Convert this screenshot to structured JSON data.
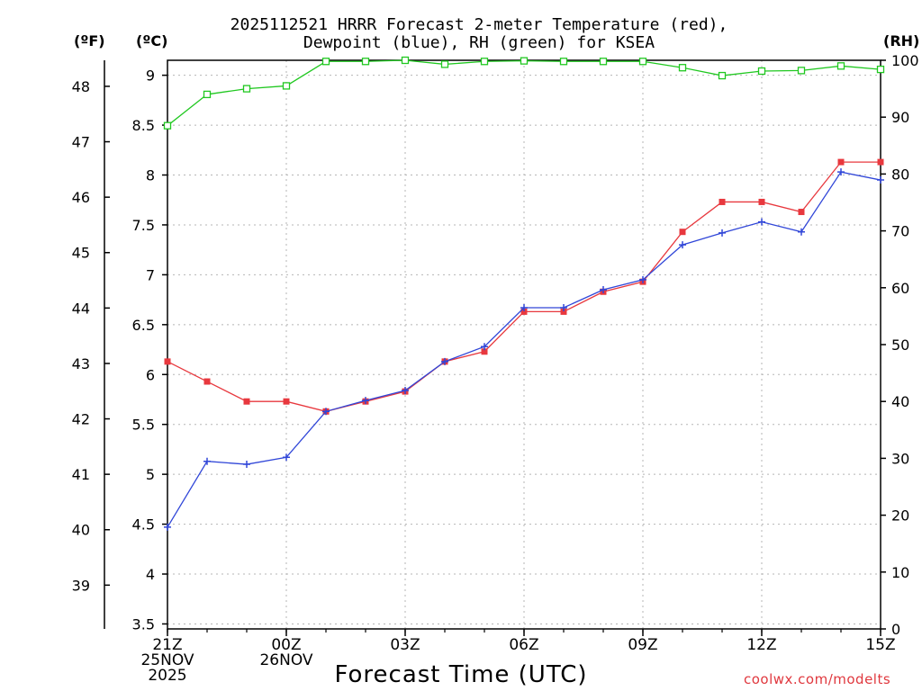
{
  "title": {
    "line1": "2025112521 HRRR Forecast 2-meter Temperature (red),",
    "line2": "Dewpoint (blue), RH (green) for KSEA"
  },
  "units": {
    "fahrenheit": "(ºF)",
    "celsius": "(ºC)",
    "rh": "(RH)"
  },
  "credit": "coolwx.com/modelts",
  "chart_data": {
    "type": "line",
    "title": "2025112521 HRRR Forecast 2-meter Temperature (red), Dewpoint (blue), RH (green) for KSEA",
    "xlabel": "Forecast Time (UTC)",
    "ylabel_left_c": "(ºC)",
    "ylabel_left_f": "(ºF)",
    "ylabel_right": "(RH)",
    "x": [
      0,
      1,
      2,
      3,
      4,
      5,
      6,
      7,
      8,
      9,
      10,
      11,
      12,
      13,
      14,
      15,
      16,
      17,
      18
    ],
    "xlim": [
      0,
      18
    ],
    "ylim_c": [
      3.45,
      9.15
    ],
    "ylim_rh": [
      0,
      100
    ],
    "grid": true,
    "x_ticks": [
      {
        "x": 0,
        "lines": [
          "21Z",
          "25NOV",
          "2025"
        ]
      },
      {
        "x": 3,
        "lines": [
          "00Z",
          "26NOV"
        ]
      },
      {
        "x": 6,
        "lines": [
          "03Z"
        ]
      },
      {
        "x": 9,
        "lines": [
          "06Z"
        ]
      },
      {
        "x": 12,
        "lines": [
          "09Z"
        ]
      },
      {
        "x": 15,
        "lines": [
          "12Z"
        ]
      },
      {
        "x": 18,
        "lines": [
          "15Z"
        ]
      }
    ],
    "y_ticks_c": [
      "3.5",
      "4",
      "4.5",
      "5",
      "5.5",
      "6",
      "6.5",
      "7",
      "7.5",
      "8",
      "8.5",
      "9"
    ],
    "y_ticks_f": [
      "39",
      "40",
      "41",
      "42",
      "43",
      "44",
      "45",
      "46",
      "47",
      "48"
    ],
    "y_ticks_rh": [
      "0",
      "10",
      "20",
      "30",
      "40",
      "50",
      "60",
      "70",
      "80",
      "90",
      "100"
    ],
    "series": [
      {
        "name": "Temperature",
        "units": "C",
        "color": "#e8383e",
        "marker": "filled-square",
        "values": [
          6.13,
          5.93,
          5.73,
          5.73,
          5.63,
          5.73,
          5.83,
          6.13,
          6.23,
          6.63,
          6.63,
          6.83,
          6.93,
          7.43,
          7.73,
          7.73,
          7.63,
          8.13,
          8.13
        ]
      },
      {
        "name": "Dewpoint",
        "units": "C",
        "color": "#3046d8",
        "marker": "plus",
        "values": [
          4.47,
          5.13,
          5.1,
          5.17,
          5.63,
          5.74,
          5.84,
          6.13,
          6.28,
          6.67,
          6.67,
          6.85,
          6.95,
          7.3,
          7.42,
          7.53,
          7.43,
          8.03,
          7.95
        ]
      },
      {
        "name": "RH",
        "units": "%",
        "color": "#20c820",
        "marker": "open-square",
        "values": [
          88.5,
          94,
          95,
          95.5,
          99.8,
          99.8,
          100,
          99.3,
          99.8,
          99.9,
          99.8,
          99.8,
          99.8,
          98.7,
          97.3,
          98.1,
          98.2,
          99,
          98.4
        ]
      }
    ]
  }
}
